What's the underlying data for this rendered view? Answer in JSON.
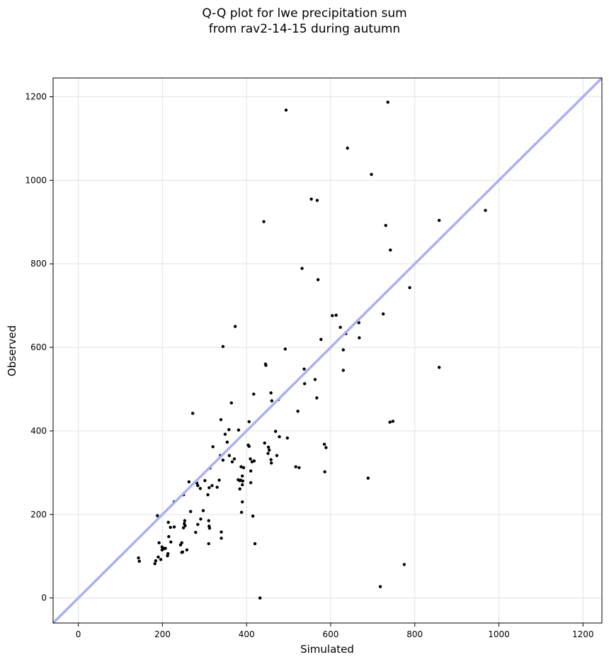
{
  "chart_data": {
    "type": "scatter",
    "title_line1": "Q-Q plot for lwe precipitation sum",
    "title_line2": "from rav2-14-15 during autumn",
    "xlabel": "Simulated",
    "ylabel": "Observed",
    "xlim": [
      -60,
      1245
    ],
    "ylim": [
      -60,
      1245
    ],
    "xticks": [
      0,
      200,
      400,
      600,
      800,
      1000,
      1200
    ],
    "yticks": [
      0,
      200,
      400,
      600,
      800,
      1000,
      1200
    ],
    "xtick_labels": [
      "0",
      "200",
      "400",
      "600",
      "800",
      "1000",
      "1200"
    ],
    "ytick_labels": [
      "0",
      "200",
      "400",
      "600",
      "800",
      "1000",
      "1200"
    ],
    "grid": true,
    "reference_line": {
      "x": [
        -60,
        1245
      ],
      "y": [
        -60,
        1245
      ],
      "color": "#aab0f5"
    },
    "point_color": "#000000",
    "points": [
      [
        494,
        1168
      ],
      [
        736,
        1187
      ],
      [
        640,
        1077
      ],
      [
        697,
        1014
      ],
      [
        554,
        955
      ],
      [
        568,
        952
      ],
      [
        441,
        901
      ],
      [
        731,
        892
      ],
      [
        858,
        904
      ],
      [
        968,
        928
      ],
      [
        742,
        833
      ],
      [
        532,
        789
      ],
      [
        570,
        762
      ],
      [
        788,
        743
      ],
      [
        604,
        676
      ],
      [
        613,
        677
      ],
      [
        725,
        680
      ],
      [
        373,
        650
      ],
      [
        623,
        648
      ],
      [
        667,
        659
      ],
      [
        577,
        619
      ],
      [
        636,
        633
      ],
      [
        668,
        623
      ],
      [
        492,
        596
      ],
      [
        344,
        602
      ],
      [
        630,
        594
      ],
      [
        858,
        552
      ],
      [
        445,
        560
      ],
      [
        446,
        557
      ],
      [
        537,
        548
      ],
      [
        630,
        545
      ],
      [
        563,
        523
      ],
      [
        538,
        513
      ],
      [
        417,
        488
      ],
      [
        458,
        491
      ],
      [
        567,
        479
      ],
      [
        364,
        467
      ],
      [
        460,
        472
      ],
      [
        476,
        475
      ],
      [
        272,
        442
      ],
      [
        522,
        447
      ],
      [
        406,
        422
      ],
      [
        339,
        427
      ],
      [
        741,
        421
      ],
      [
        748,
        423
      ],
      [
        381,
        402
      ],
      [
        358,
        403
      ],
      [
        469,
        399
      ],
      [
        349,
        392
      ],
      [
        478,
        386
      ],
      [
        497,
        383
      ],
      [
        354,
        373
      ],
      [
        443,
        371
      ],
      [
        585,
        368
      ],
      [
        589,
        360
      ],
      [
        320,
        362
      ],
      [
        404,
        366
      ],
      [
        406,
        363
      ],
      [
        452,
        361
      ],
      [
        454,
        354
      ],
      [
        451,
        346
      ],
      [
        338,
        341
      ],
      [
        359,
        341
      ],
      [
        472,
        341
      ],
      [
        371,
        333
      ],
      [
        409,
        333
      ],
      [
        413,
        326
      ],
      [
        418,
        328
      ],
      [
        458,
        331
      ],
      [
        459,
        323
      ],
      [
        366,
        326
      ],
      [
        344,
        330
      ],
      [
        517,
        314
      ],
      [
        525,
        312
      ],
      [
        387,
        314
      ],
      [
        393,
        312
      ],
      [
        313,
        311
      ],
      [
        410,
        304
      ],
      [
        586,
        302
      ],
      [
        390,
        292
      ],
      [
        689,
        287
      ],
      [
        380,
        283
      ],
      [
        386,
        282
      ],
      [
        384,
        281
      ],
      [
        391,
        280
      ],
      [
        301,
        281
      ],
      [
        335,
        282
      ],
      [
        410,
        276
      ],
      [
        263,
        278
      ],
      [
        282,
        275
      ],
      [
        284,
        269
      ],
      [
        318,
        269
      ],
      [
        311,
        264
      ],
      [
        330,
        265
      ],
      [
        390,
        271
      ],
      [
        384,
        261
      ],
      [
        290,
        262
      ],
      [
        308,
        247
      ],
      [
        250,
        247
      ],
      [
        228,
        230
      ],
      [
        390,
        230
      ],
      [
        267,
        207
      ],
      [
        297,
        209
      ],
      [
        188,
        197
      ],
      [
        388,
        205
      ],
      [
        415,
        196
      ],
      [
        291,
        189
      ],
      [
        310,
        185
      ],
      [
        253,
        185
      ],
      [
        252,
        178
      ],
      [
        254,
        173
      ],
      [
        284,
        176
      ],
      [
        311,
        172
      ],
      [
        312,
        167
      ],
      [
        214,
        181
      ],
      [
        219,
        169
      ],
      [
        228,
        170
      ],
      [
        250,
        168
      ],
      [
        279,
        157
      ],
      [
        340,
        158
      ],
      [
        215,
        147
      ],
      [
        340,
        143
      ],
      [
        192,
        132
      ],
      [
        220,
        134
      ],
      [
        246,
        132
      ],
      [
        243,
        127
      ],
      [
        310,
        130
      ],
      [
        420,
        130
      ],
      [
        199,
        122
      ],
      [
        204,
        118
      ],
      [
        207,
        119
      ],
      [
        199,
        115
      ],
      [
        248,
        110
      ],
      [
        258,
        115
      ],
      [
        246,
        109
      ],
      [
        213,
        106
      ],
      [
        212,
        101
      ],
      [
        190,
        98
      ],
      [
        143,
        96
      ],
      [
        145,
        88
      ],
      [
        184,
        89
      ],
      [
        196,
        92
      ],
      [
        182,
        82
      ],
      [
        775,
        80
      ],
      [
        718,
        27
      ],
      [
        432,
        0
      ]
    ]
  }
}
